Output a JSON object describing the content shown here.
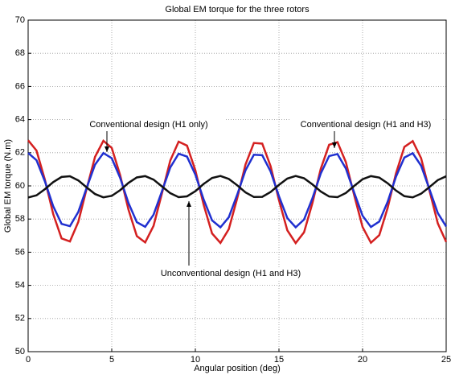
{
  "chart_data": {
    "type": "line",
    "title": "Global EM torque for the three rotors",
    "x_label": "Angular position (deg)",
    "y_label": "Global EM torque (N.m)",
    "x": [
      0,
      0.5,
      1,
      1.5,
      2,
      2.5,
      3,
      3.5,
      4,
      4.5,
      5,
      5.5,
      6,
      6.5,
      7,
      7.5,
      8,
      8.5,
      9,
      9.5,
      10,
      10.5,
      11,
      11.5,
      12,
      12.5,
      13,
      13.5,
      14,
      14.5,
      15,
      15.5,
      16,
      16.5,
      17,
      17.5,
      18,
      18.5,
      19,
      19.5,
      20,
      20.5,
      21,
      21.5,
      22,
      22.5,
      23,
      23.5,
      24,
      24.5,
      25
    ],
    "series": [
      {
        "name": "Conventional design (H1 and H3)",
        "color": "#d42020",
        "values": [
          62.75,
          62.13,
          60.38,
          58.3,
          56.83,
          56.65,
          57.83,
          59.83,
          61.75,
          62.72,
          62.29,
          60.66,
          58.57,
          56.97,
          56.59,
          57.59,
          59.54,
          61.53,
          62.67,
          62.43,
          60.94,
          58.85,
          57.13,
          56.56,
          57.39,
          59.24,
          61.29,
          62.59,
          62.55,
          61.19,
          59.14,
          57.32,
          56.55,
          57.2,
          58.96,
          61.03,
          62.48,
          62.64,
          61.44,
          59.43,
          57.52,
          56.57,
          57.03,
          58.67,
          60.76,
          62.35,
          62.7,
          61.67,
          59.72,
          57.74,
          56.62
        ]
      },
      {
        "name": "Conventional design (H1 only)",
        "color": "#2030d0",
        "values": [
          61.99,
          61.55,
          60.28,
          58.77,
          57.71,
          57.57,
          58.43,
          59.88,
          61.28,
          61.98,
          61.67,
          60.49,
          58.97,
          57.81,
          57.53,
          58.26,
          59.67,
          61.11,
          61.94,
          61.77,
          60.68,
          59.17,
          57.92,
          57.5,
          58.11,
          59.46,
          60.94,
          61.88,
          61.85,
          60.87,
          59.38,
          58.06,
          57.5,
          57.97,
          59.25,
          60.75,
          61.8,
          61.92,
          61.05,
          59.59,
          58.2,
          57.52,
          57.85,
          59.04,
          60.56,
          61.71,
          61.97,
          61.22,
          59.8,
          58.36,
          57.55
        ]
      },
      {
        "name": "Unconventional design (H1 and H3)",
        "color": "#111111",
        "values": [
          59.3,
          59.43,
          59.8,
          60.23,
          60.54,
          60.58,
          60.33,
          59.91,
          59.51,
          59.31,
          59.4,
          59.74,
          60.18,
          60.51,
          60.59,
          60.38,
          59.97,
          59.56,
          59.32,
          59.37,
          59.68,
          60.12,
          60.48,
          60.6,
          60.42,
          60.04,
          59.61,
          59.33,
          59.34,
          59.63,
          60.06,
          60.44,
          60.6,
          60.46,
          60.09,
          59.66,
          59.36,
          59.32,
          59.57,
          60.0,
          60.4,
          60.59,
          60.5,
          60.16,
          59.72,
          59.38,
          59.31,
          59.53,
          59.93,
          60.35,
          60.58
        ]
      }
    ],
    "xlim": [
      0,
      25
    ],
    "ylim": [
      50,
      70
    ],
    "xticks": [
      0,
      5,
      10,
      15,
      20,
      25
    ],
    "yticks": [
      50,
      52,
      54,
      56,
      58,
      60,
      62,
      64,
      66,
      68,
      70
    ],
    "grid": true
  }
}
